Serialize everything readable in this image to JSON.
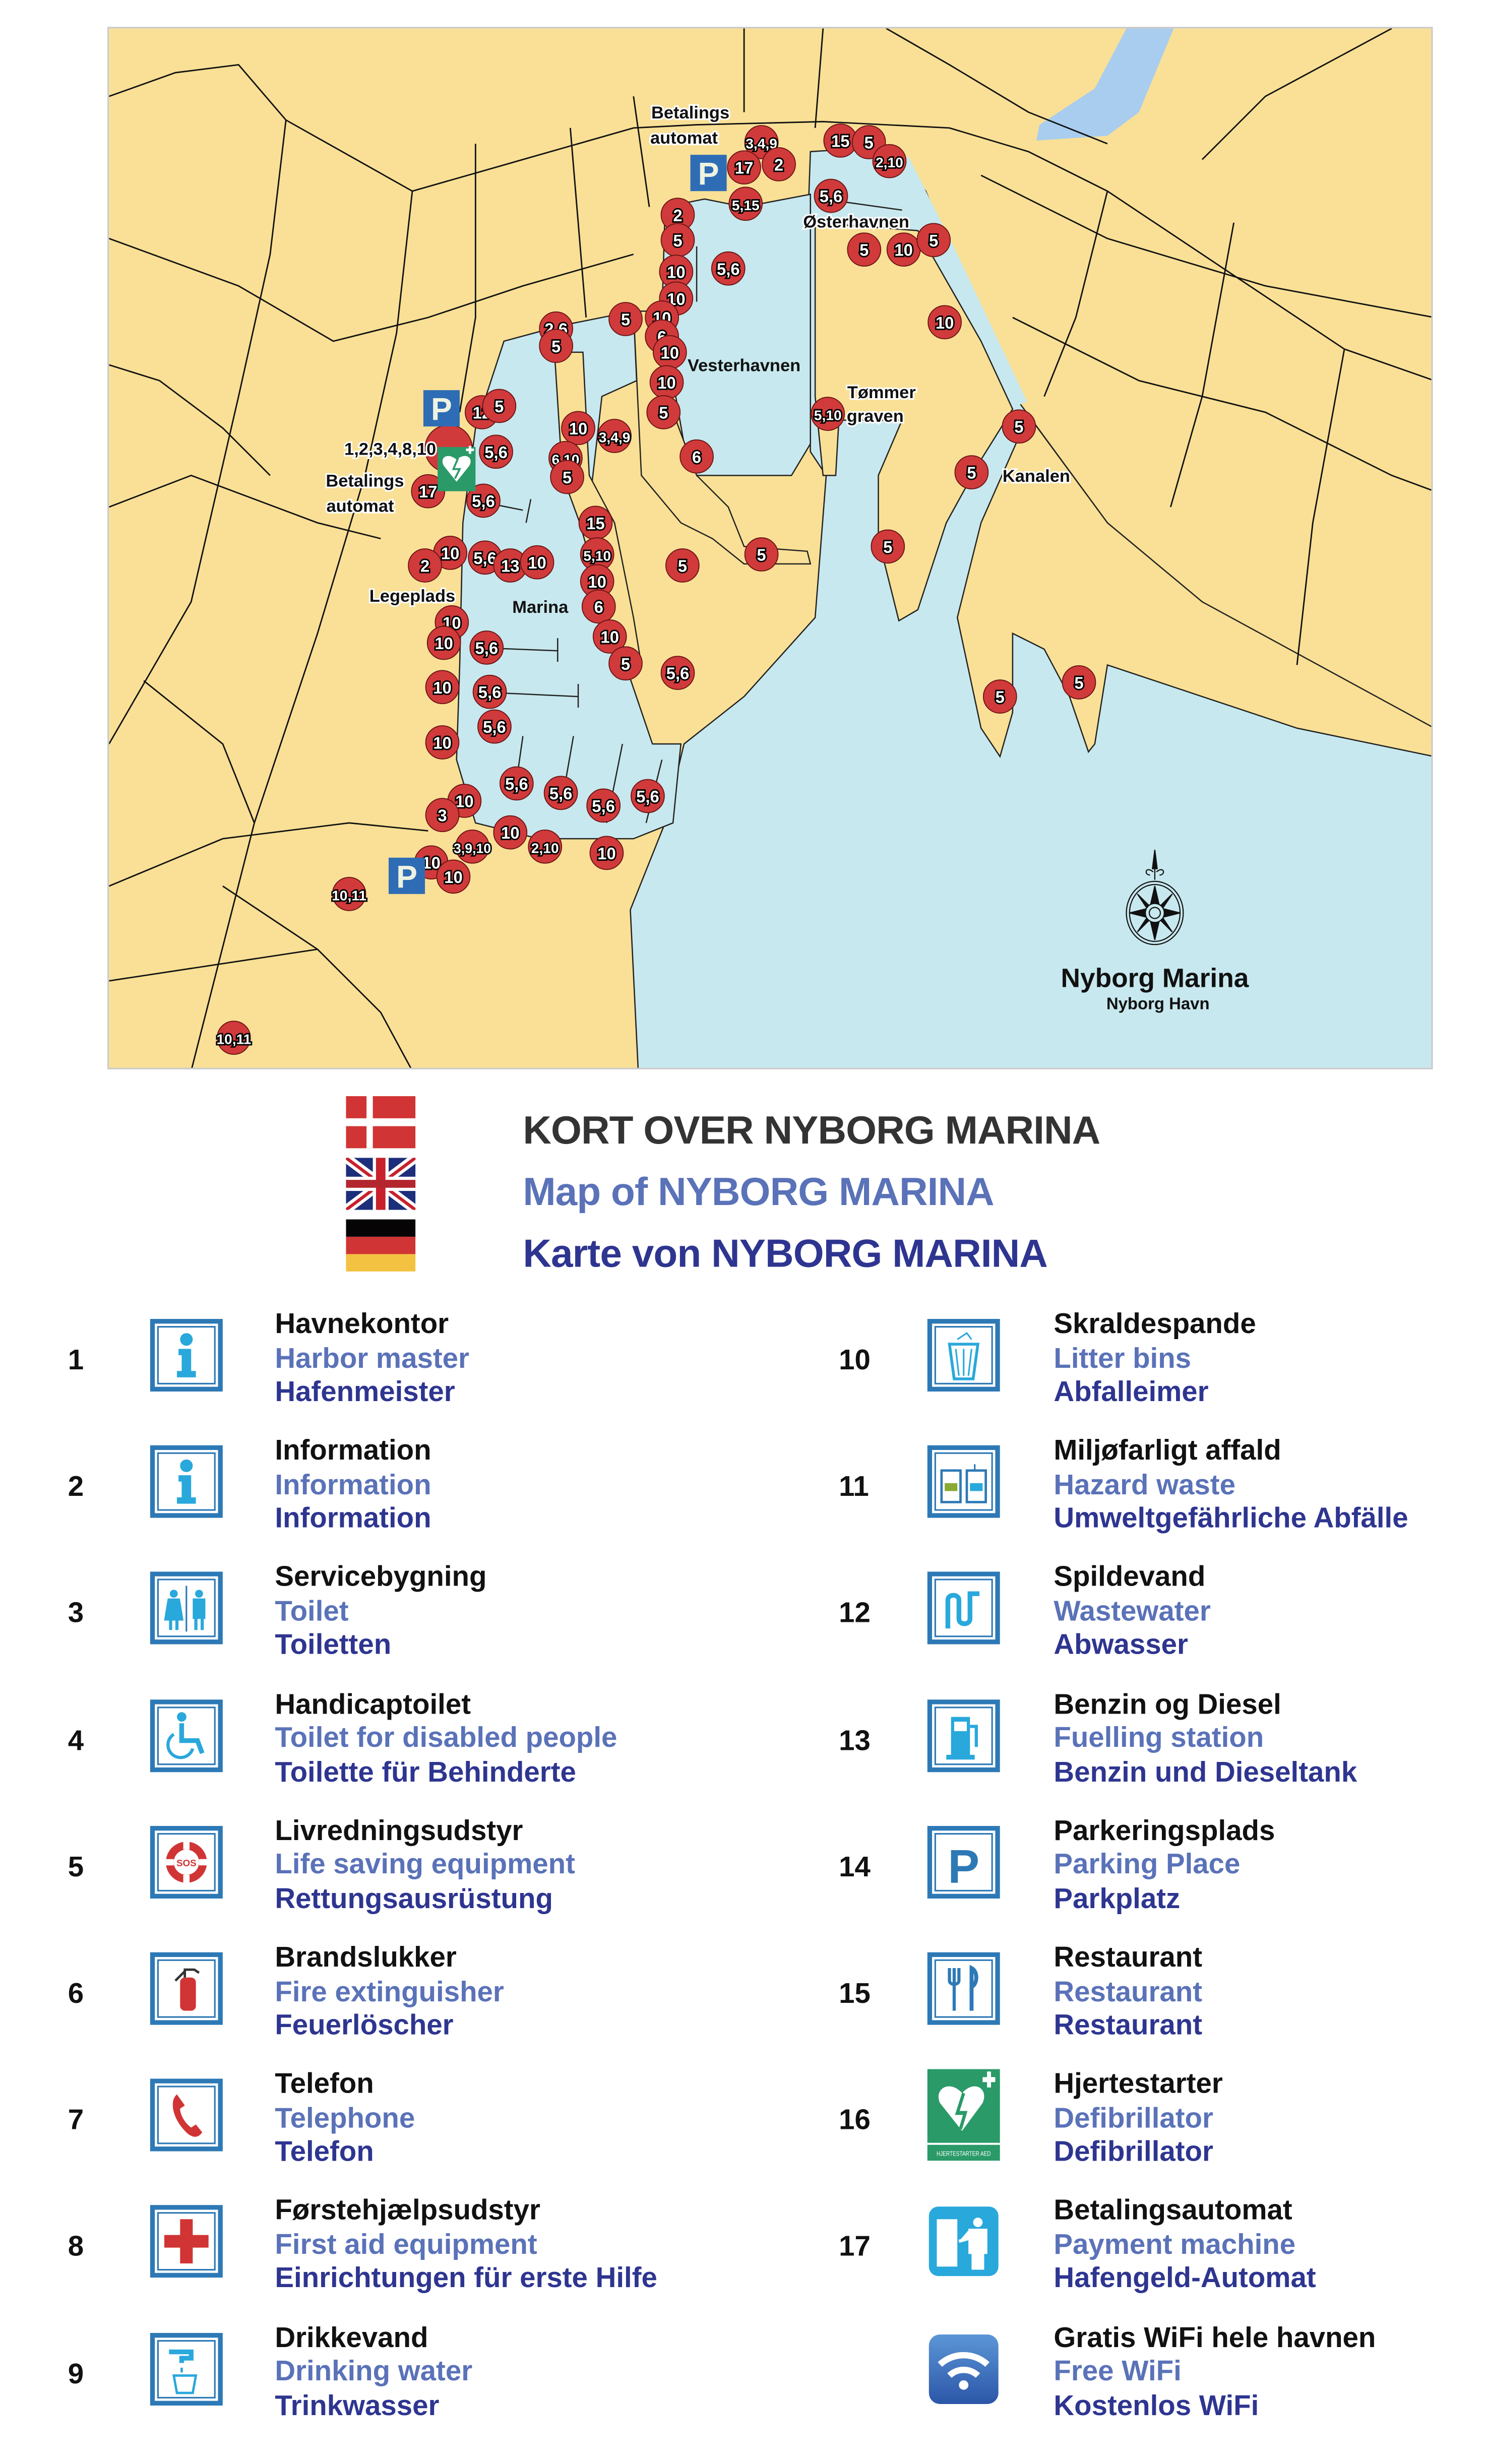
{
  "map": {
    "place_labels": [
      "Betalings",
      "automat",
      "Betalings",
      "automat",
      "Østerhavnen",
      "Vesterhavnen",
      "Tømmer",
      "graven",
      "Kanalen",
      "Legeplads",
      "Marina",
      "1,2,3,4,8,10"
    ],
    "markers": [
      "3,4,9",
      "17",
      "2",
      "15",
      "5",
      "2,10",
      "5,15",
      "5,6",
      "2",
      "5",
      "10",
      "10",
      "5,6",
      "5",
      "10",
      "5",
      "10",
      "5",
      "2,6",
      "5",
      "10",
      "6",
      "10",
      "10",
      "5",
      "5,10",
      "12",
      "5",
      "",
      "5,6",
      "10",
      "3,4,9",
      "6,10",
      "5",
      "6",
      "17",
      "5,6",
      "15",
      "5,10",
      "10",
      "2",
      "5,6",
      "13",
      "10",
      "5",
      "5",
      "10",
      "6",
      "10",
      "10",
      "5,6",
      "10",
      "5",
      "5,6",
      "10",
      "5,6",
      "5,6",
      "10",
      "5,6",
      "5,6",
      "5,6",
      "5,6",
      "10",
      "3",
      "10",
      "3,9,10",
      "2,10",
      "10",
      "10",
      "10",
      "10,11",
      "10,11",
      "5",
      "5",
      "5",
      "5",
      "5"
    ],
    "parking_sign": "P",
    "title": "Nyborg Marina",
    "subtitle": "Nyborg Havn",
    "colors": {
      "land": "#f9e096",
      "water": "#c7e8ee",
      "marker": "#d13a3b",
      "parking": "#2e6db5"
    }
  },
  "header": {
    "da": "KORT OVER NYBORG MARINA",
    "en": "Map of NYBORG MARINA",
    "de": "Karte von NYBORG MARINA",
    "colors": {
      "da": "#333333",
      "en": "#5a72b8",
      "de": "#2e3590"
    }
  },
  "legend": {
    "items": [
      {
        "num": "1",
        "icon": "info-icon",
        "da": "Havnekontor",
        "en": "Harbor master",
        "de": "Hafenmeister"
      },
      {
        "num": "2",
        "icon": "info-icon",
        "da": "Information",
        "en": "Information",
        "de": "Information"
      },
      {
        "num": "3",
        "icon": "toilet-icon",
        "da": "Servicebygning",
        "en": "Toilet",
        "de": "Toiletten"
      },
      {
        "num": "4",
        "icon": "wheelchair-icon",
        "da": "Handicaptoilet",
        "en": "Toilet for disabled people",
        "de": "Toilette für Behinderte"
      },
      {
        "num": "5",
        "icon": "lifebuoy-icon",
        "da": "Livredningsudstyr",
        "en": "Life saving equipment",
        "de": "Rettungsausrüstung"
      },
      {
        "num": "6",
        "icon": "fire-extinguisher-icon",
        "da": "Brandslukker",
        "en": "Fire extinguisher",
        "de": "Feuerlöscher"
      },
      {
        "num": "7",
        "icon": "telephone-icon",
        "da": "Telefon",
        "en": "Telephone",
        "de": "Telefon"
      },
      {
        "num": "8",
        "icon": "first-aid-icon",
        "da": "Førstehjælpsudstyr",
        "en": "First aid equipment",
        "de": "Einrichtungen für erste Hilfe"
      },
      {
        "num": "9",
        "icon": "drinking-water-icon",
        "da": "Drikkevand",
        "en": "Drinking water",
        "de": "Trinkwasser"
      },
      {
        "num": "10",
        "icon": "litter-bin-icon",
        "da": "Skraldespande",
        "en": "Litter bins",
        "de": "Abfalleimer"
      },
      {
        "num": "11",
        "icon": "hazard-waste-icon",
        "da": "Miljøfarligt affald",
        "en": "Hazard waste",
        "de": "Umweltgefährliche Abfälle"
      },
      {
        "num": "12",
        "icon": "wastewater-icon",
        "da": "Spildevand",
        "en": "Wastewater",
        "de": "Abwasser"
      },
      {
        "num": "13",
        "icon": "fuel-pump-icon",
        "da": "Benzin og Diesel",
        "en": "Fuelling station",
        "de": "Benzin und Dieseltank"
      },
      {
        "num": "14",
        "icon": "parking-icon",
        "da": "Parkeringsplads",
        "en": "Parking Place",
        "de": "Parkplatz"
      },
      {
        "num": "15",
        "icon": "restaurant-icon",
        "da": "Restaurant",
        "en": "Restaurant",
        "de": "Restaurant"
      },
      {
        "num": "16",
        "icon": "defibrillator-icon",
        "da": "Hjertestarter",
        "en": "Defibrillator",
        "de": "Defibrillator",
        "sign": "HJERTESTARTER AED"
      },
      {
        "num": "17",
        "icon": "payment-machine-icon",
        "da": "Betalingsautomat",
        "en": "Payment machine",
        "de": "Hafengeld-Automat"
      },
      {
        "num": "",
        "icon": "wifi-icon",
        "da": "Gratis WiFi hele havnen",
        "en": "Free WiFi",
        "de": "Kostenlos WiFi"
      }
    ]
  }
}
